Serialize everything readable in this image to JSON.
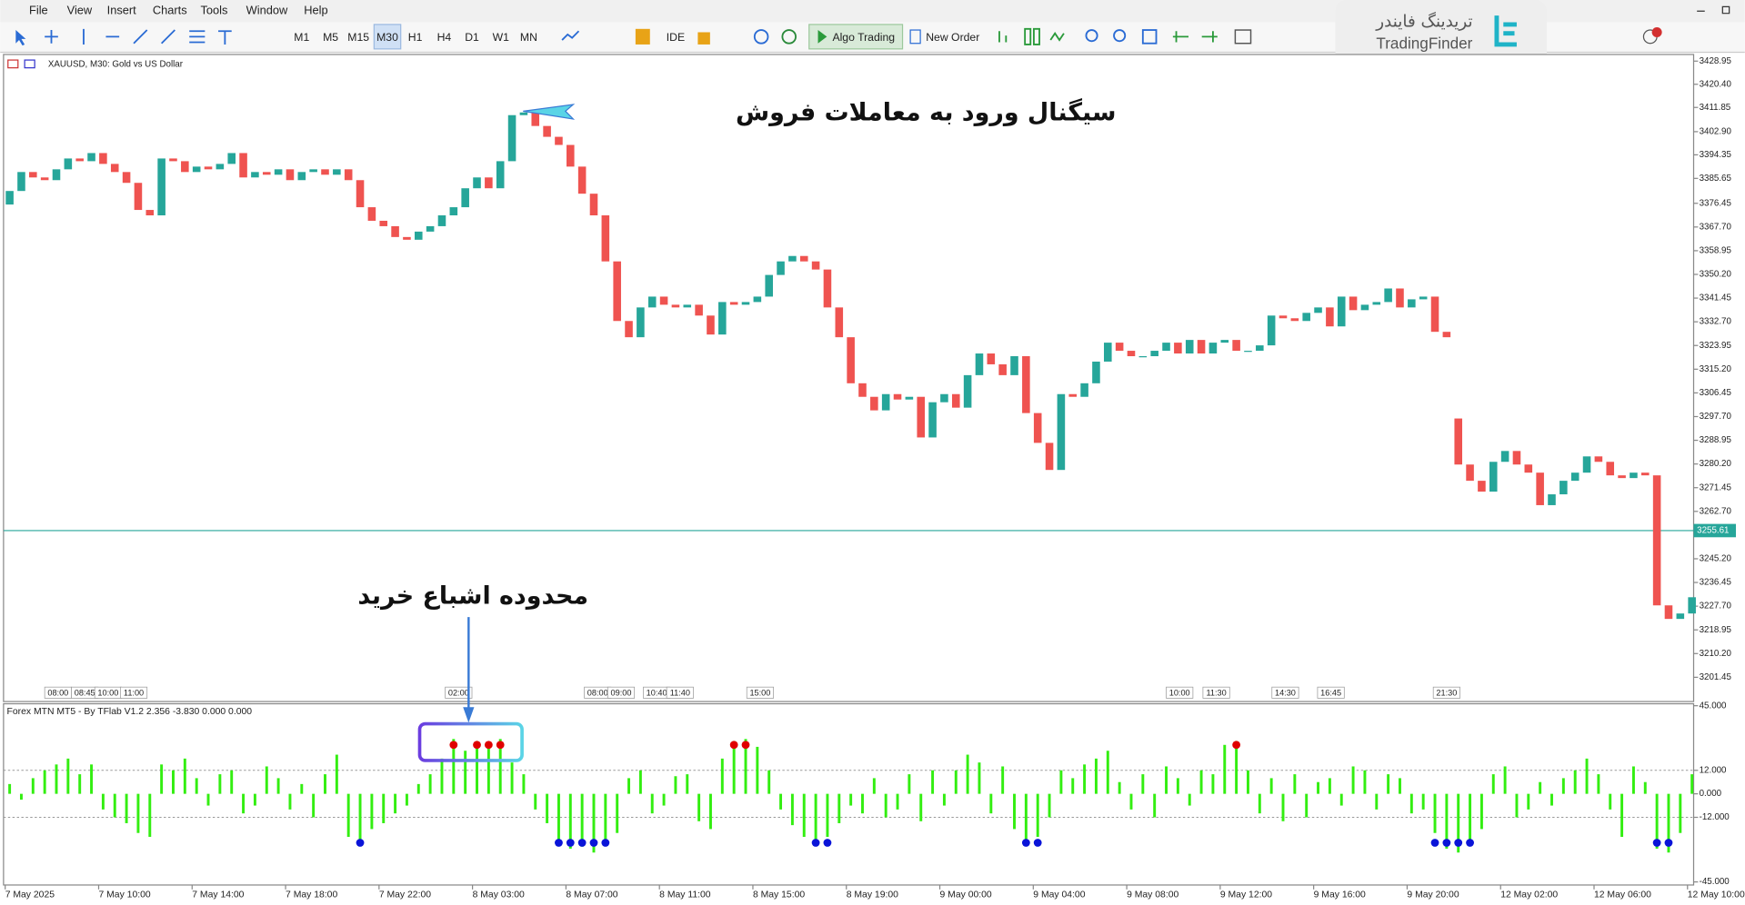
{
  "menu": [
    "File",
    "View",
    "Insert",
    "Charts",
    "Tools",
    "Window",
    "Help"
  ],
  "toolbar": {
    "timeframes": [
      "M1",
      "M5",
      "M15",
      "M30",
      "H1",
      "H4",
      "D1",
      "W1",
      "MN"
    ],
    "active_timeframe": "M30",
    "ide": "IDE",
    "algo_trading": "Algo Trading",
    "new_order": "New Order"
  },
  "logo": {
    "persian": "تریدینگ فایندر",
    "latin": "TradingFinder"
  },
  "annotations": {
    "sell_signal": "سیگنال ورود به معاملات فروش",
    "overbought_zone": "محدوده اشباع خرید"
  },
  "chart_data": [
    {
      "type": "candlestick",
      "title": "XAUUSD, M30:  Gold vs US Dollar",
      "up_color": "#26a69a",
      "down_color": "#ef5350",
      "open": [
        3376,
        3381,
        3388,
        3386,
        3385,
        3389,
        3393,
        3392,
        3395,
        3391,
        3388,
        3384,
        3374,
        3372,
        3393,
        3392,
        3388,
        3390,
        3389,
        3391,
        3395,
        3386,
        3388,
        3387,
        3389,
        3385,
        3388,
        3389,
        3387,
        3389,
        3385,
        3375,
        3370,
        3368,
        3364,
        3363,
        3366,
        3368,
        3372,
        3375,
        3382,
        3386,
        3382,
        3392,
        3409,
        3410,
        3405,
        3401,
        3398,
        3390,
        3380,
        3372,
        3355,
        3333,
        3327,
        3338,
        3342,
        3339,
        3338,
        3339,
        3335,
        3328,
        3340,
        3339,
        3340,
        3342,
        3350,
        3355,
        3357,
        3355,
        3352,
        3338,
        3327,
        3310,
        3305,
        3300,
        3306,
        3304,
        3305,
        3290,
        3303,
        3306,
        3301,
        3313,
        3321,
        3317,
        3313,
        3320,
        3299,
        3288,
        3278,
        3306,
        3305,
        3310,
        3318,
        3325,
        3322,
        3320,
        3320,
        3322,
        3325,
        3321,
        3326,
        3321,
        3325,
        3326,
        3322,
        3322,
        3324,
        3335,
        3334,
        3333,
        3336,
        3338,
        3331,
        3342,
        3337,
        3339,
        3340,
        3345,
        3338,
        3341,
        3342,
        3329,
        3297,
        3280,
        3274,
        3270,
        3281,
        3285,
        3280,
        3277,
        3265,
        3269,
        3274,
        3277,
        3283,
        3281,
        3276,
        3275,
        3277,
        3276,
        3228,
        3223,
        3225
      ],
      "close": [
        3381,
        3388,
        3386,
        3385,
        3389,
        3393,
        3392,
        3395,
        3391,
        3388,
        3384,
        3374,
        3372,
        3393,
        3392,
        3388,
        3390,
        3389,
        3391,
        3395,
        3386,
        3388,
        3387,
        3389,
        3385,
        3388,
        3389,
        3387,
        3389,
        3385,
        3375,
        3370,
        3368,
        3364,
        3363,
        3366,
        3368,
        3372,
        3375,
        3382,
        3386,
        3382,
        3392,
        3409,
        3410,
        3405,
        3401,
        3398,
        3390,
        3380,
        3372,
        3355,
        3333,
        3327,
        3338,
        3342,
        3339,
        3338,
        3339,
        3335,
        3328,
        3340,
        3339,
        3340,
        3342,
        3350,
        3355,
        3357,
        3355,
        3352,
        3338,
        3327,
        3310,
        3305,
        3300,
        3306,
        3304,
        3305,
        3290,
        3303,
        3306,
        3301,
        3313,
        3321,
        3317,
        3313,
        3320,
        3299,
        3288,
        3278,
        3306,
        3305,
        3310,
        3318,
        3325,
        3322,
        3320,
        3320,
        3322,
        3325,
        3321,
        3326,
        3321,
        3325,
        3326,
        3322,
        3322,
        3324,
        3335,
        3334,
        3333,
        3336,
        3338,
        3331,
        3342,
        3337,
        3339,
        3340,
        3345,
        3338,
        3341,
        3342,
        3329,
        3327,
        3280,
        3274,
        3270,
        3281,
        3285,
        3280,
        3277,
        3265,
        3269,
        3274,
        3277,
        3283,
        3281,
        3276,
        3275,
        3277,
        3276,
        3228,
        3223,
        3225,
        3231
      ],
      "ylim": [
        3192.9,
        3431.4
      ],
      "yticks": [
        3428.95,
        {
          "value": 3420.4,
          "label": "3420.40"
        },
        3411.85,
        {
          "value": 3402.9,
          "label": "3402.90"
        },
        3394.35,
        3385.65,
        3376.45,
        {
          "value": 3367.7,
          "label": "3367.70"
        },
        3358.95,
        {
          "value": 3350.2,
          "label": "3350.20"
        },
        3341.45,
        {
          "value": 3332.7,
          "label": "3332.70"
        },
        3323.95,
        {
          "value": 3315.2,
          "label": "3315.20"
        },
        3306.45,
        {
          "value": 3297.7,
          "label": "3297.70"
        },
        3288.95,
        {
          "value": 3280.2,
          "label": "3280.20"
        },
        3271.45,
        {
          "value": 3262.7,
          "label": "3262.70"
        },
        {
          "value": 3245.2,
          "label": "3245.20"
        },
        3236.45,
        {
          "value": 3227.7,
          "label": "3227.70"
        },
        3218.95,
        {
          "value": 3210.2,
          "label": "3210.20"
        },
        3201.45
      ],
      "current_price": 3255.61,
      "current_price_color": "#26a69a",
      "time_labels": [
        "08:00",
        "08:45",
        "10:00",
        "11:00",
        "02:00",
        "08:00",
        "09:00",
        "10:40",
        "11:40",
        "15:00",
        "10:00",
        "11:30",
        "14:30",
        "16:45",
        "21:30"
      ]
    },
    {
      "type": "bar",
      "title": "Forex MTN MT5 - By TFlab V1.2 2.356 -3.830 0.000 0.000",
      "color": "#33ee11",
      "categories": [
        "7 May 2025",
        null,
        null,
        null,
        null,
        null,
        null,
        null,
        "7 May 10:00",
        null,
        null,
        null,
        null,
        null,
        null,
        null,
        "7 May 14:00",
        null,
        null,
        null,
        null,
        null,
        null,
        null,
        "7 May 18:00",
        null,
        null,
        null,
        null,
        null,
        null,
        null,
        "7 May 22:00",
        null,
        null,
        null,
        null,
        null,
        null,
        null,
        "8 May 03:00",
        null,
        null,
        null,
        null,
        null,
        null,
        null,
        "8 May 07:00",
        null,
        null,
        null,
        null,
        null,
        null,
        null,
        "8 May 11:00",
        null,
        null,
        null,
        null,
        null,
        null,
        null,
        "8 May 15:00",
        null,
        null,
        null,
        null,
        null,
        null,
        null,
        "8 May 19:00",
        null,
        null,
        null,
        null,
        null,
        null,
        null,
        "9 May 00:00",
        null,
        null,
        null,
        null,
        null,
        null,
        null,
        "9 May 04:00",
        null,
        null,
        null,
        null,
        null,
        null,
        null,
        "9 May 08:00",
        null,
        null,
        null,
        null,
        null,
        null,
        null,
        "9 May 12:00",
        null,
        null,
        null,
        null,
        null,
        null,
        null,
        "9 May 16:00",
        null,
        null,
        null,
        null,
        null,
        null,
        null,
        "9 May 20:00",
        null,
        null,
        null,
        null,
        null,
        null,
        null,
        "12 May 02:00",
        null,
        null,
        null,
        null,
        null,
        null,
        null,
        "12 May 06:00",
        null,
        null,
        null,
        null,
        null,
        null,
        null,
        "12 May 10:00"
      ],
      "values": [
        5,
        -3,
        8,
        12,
        15,
        18,
        10,
        15,
        -8,
        -12,
        -15,
        -20,
        -22,
        15,
        12,
        18,
        8,
        -6,
        10,
        12,
        -10,
        -6,
        14,
        8,
        -8,
        5,
        -12,
        10,
        20,
        -22,
        -25,
        -18,
        -15,
        -10,
        -6,
        5,
        10,
        18,
        28,
        22,
        27,
        26,
        28,
        16,
        10,
        -8,
        -15,
        -25,
        -28,
        -27,
        -30,
        -26,
        -20,
        8,
        12,
        -10,
        -6,
        9,
        10,
        -14,
        -18,
        18,
        27,
        28,
        24,
        12,
        -8,
        -16,
        -22,
        -26,
        -22,
        -15,
        -6,
        -10,
        8,
        -12,
        -8,
        10,
        -14,
        12,
        -6,
        12,
        20,
        16,
        -10,
        14,
        -18,
        -25,
        -22,
        -12,
        12,
        8,
        15,
        18,
        22,
        6,
        -8,
        10,
        -12,
        14,
        8,
        -6,
        12,
        10,
        25,
        27,
        12,
        -10,
        8,
        -14,
        10,
        -12,
        6,
        8,
        -6,
        14,
        12,
        -8,
        10,
        8,
        -10,
        -8,
        -20,
        -28,
        -30,
        -26,
        -18,
        10,
        14,
        -12,
        -8,
        6,
        -6,
        8,
        12,
        18,
        10,
        -8,
        -22,
        14,
        6,
        -28,
        -30,
        -20,
        10
      ],
      "ylim": [
        -46,
        46
      ],
      "yticks": [
        {
          "value": 45,
          "label": "45.000"
        },
        {
          "value": 12,
          "label": "12.000"
        },
        {
          "value": 0,
          "label": "0.000"
        },
        {
          "value": -12,
          "label": "-12.000"
        },
        {
          "value": -45,
          "label": "-45.000"
        }
      ],
      "sell_signal_index": [
        38,
        40,
        41,
        42,
        62,
        63,
        105
      ],
      "sell_signal_level": 25,
      "sell_signal_color": "#e00000",
      "buy_signal_index": [
        30,
        47,
        48,
        49,
        50,
        51,
        69,
        70,
        87,
        88,
        122,
        123,
        124,
        125,
        141,
        142
      ],
      "buy_signal_level": -25,
      "buy_signal_color": "#0a14d8"
    }
  ]
}
